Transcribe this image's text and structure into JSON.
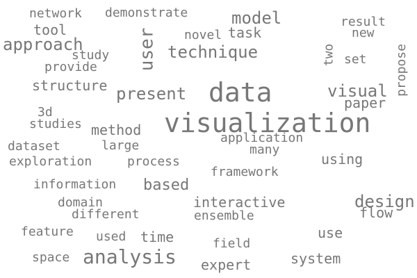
{
  "word_cloud": {
    "text_color": "#777777",
    "background_color": "#ffffff",
    "words": [
      {
        "id": "network",
        "text": "network"
      },
      {
        "id": "demonstrate",
        "text": "demonstrate"
      },
      {
        "id": "model",
        "text": "model"
      },
      {
        "id": "result",
        "text": "result"
      },
      {
        "id": "tool",
        "text": "tool"
      },
      {
        "id": "novel",
        "text": "novel"
      },
      {
        "id": "task",
        "text": "task"
      },
      {
        "id": "new",
        "text": "new"
      },
      {
        "id": "approach",
        "text": "approach"
      },
      {
        "id": "study",
        "text": "study"
      },
      {
        "id": "user",
        "text": "user"
      },
      {
        "id": "technique",
        "text": "technique"
      },
      {
        "id": "two",
        "text": "two"
      },
      {
        "id": "set",
        "text": "set"
      },
      {
        "id": "propose",
        "text": "propose"
      },
      {
        "id": "provide",
        "text": "provide"
      },
      {
        "id": "structure",
        "text": "structure"
      },
      {
        "id": "data",
        "text": "data"
      },
      {
        "id": "visual",
        "text": "visual"
      },
      {
        "id": "present",
        "text": "present"
      },
      {
        "id": "paper",
        "text": "paper"
      },
      {
        "id": "3d",
        "text": "3d"
      },
      {
        "id": "visualization",
        "text": "visualization"
      },
      {
        "id": "studies",
        "text": "studies"
      },
      {
        "id": "method",
        "text": "method"
      },
      {
        "id": "application",
        "text": "application"
      },
      {
        "id": "dataset",
        "text": "dataset"
      },
      {
        "id": "large",
        "text": "large"
      },
      {
        "id": "many",
        "text": "many"
      },
      {
        "id": "exploration",
        "text": "exploration"
      },
      {
        "id": "process",
        "text": "process"
      },
      {
        "id": "using",
        "text": "using"
      },
      {
        "id": "framework",
        "text": "framework"
      },
      {
        "id": "information",
        "text": "information"
      },
      {
        "id": "based",
        "text": "based"
      },
      {
        "id": "domain",
        "text": "domain"
      },
      {
        "id": "interactive",
        "text": "interactive"
      },
      {
        "id": "design",
        "text": "design"
      },
      {
        "id": "different",
        "text": "different"
      },
      {
        "id": "flow",
        "text": "flow"
      },
      {
        "id": "ensemble",
        "text": "ensemble"
      },
      {
        "id": "feature",
        "text": "feature"
      },
      {
        "id": "use",
        "text": "use"
      },
      {
        "id": "used",
        "text": "used"
      },
      {
        "id": "time",
        "text": "time"
      },
      {
        "id": "field",
        "text": "field"
      },
      {
        "id": "space",
        "text": "space"
      },
      {
        "id": "analysis",
        "text": "analysis"
      },
      {
        "id": "system",
        "text": "system"
      },
      {
        "id": "expert",
        "text": "expert"
      }
    ]
  }
}
